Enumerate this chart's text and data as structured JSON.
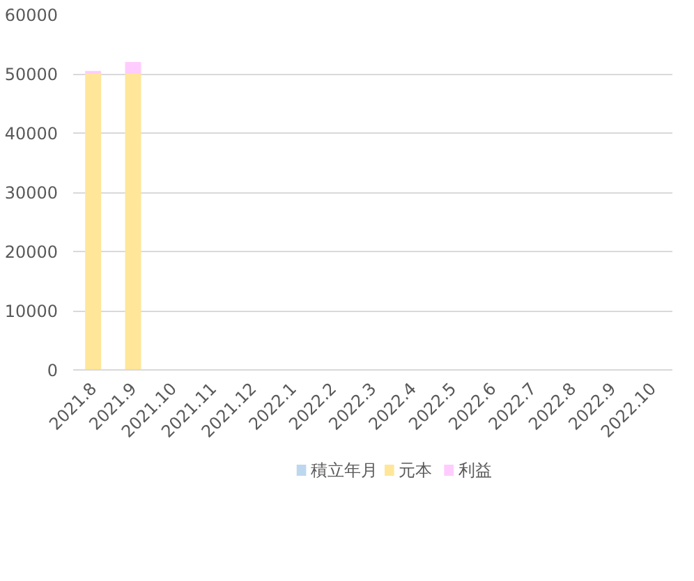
{
  "chart_data": {
    "type": "bar",
    "stacked": true,
    "categories": [
      "2021.8",
      "2021.9",
      "2021.10",
      "2021.11",
      "2021.12",
      "2022.1",
      "2022.2",
      "2022.3",
      "2022.4",
      "2022.5",
      "2022.6",
      "2022.7",
      "2022.8",
      "2022.9",
      "2022.10"
    ],
    "series": [
      {
        "name": "積立年月",
        "color": "#bdd7ee",
        "values": [
          null,
          null,
          null,
          null,
          null,
          null,
          null,
          null,
          null,
          null,
          null,
          null,
          null,
          null,
          null
        ]
      },
      {
        "name": "元本",
        "color": "#ffe699",
        "values": [
          50000,
          50000,
          null,
          null,
          null,
          null,
          null,
          null,
          null,
          null,
          null,
          null,
          null,
          null,
          null
        ]
      },
      {
        "name": "利益",
        "color": "#ffccff",
        "values": [
          500,
          2000,
          null,
          null,
          null,
          null,
          null,
          null,
          null,
          null,
          null,
          null,
          null,
          null,
          null
        ]
      }
    ],
    "ylim": [
      0,
      60000
    ],
    "yticks": [
      0,
      10000,
      20000,
      30000,
      40000,
      50000,
      60000
    ],
    "grid": "y",
    "legend": "bottom"
  }
}
